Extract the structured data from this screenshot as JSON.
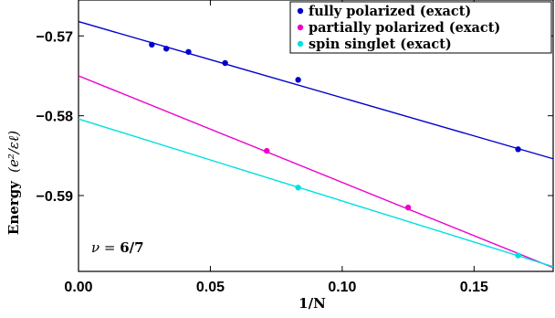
{
  "chart_data": {
    "type": "scatter",
    "xlabel": "1/N",
    "ylabel_main": "Energy",
    "ylabel_unit": "(e²/εℓ)",
    "xlim": [
      0,
      0.18
    ],
    "ylim": [
      -0.5995,
      -0.5655
    ],
    "x_ticks": [
      0,
      0.05,
      0.1,
      0.15
    ],
    "x_tick_labels": [
      "0.00",
      "0.05",
      "0.10",
      "0.15"
    ],
    "y_ticks": [
      -0.57,
      -0.58,
      -0.59
    ],
    "y_tick_labels": [
      "−0.57",
      "−0.58",
      "−0.59"
    ],
    "annotation_prefix": "ν = ",
    "annotation_value": "6/7",
    "legend_position": "top-right",
    "series": [
      {
        "name": "fully polarized (exact)",
        "color": "#0000cc",
        "points": [
          [
            0.0278,
            -0.5711
          ],
          [
            0.0333,
            -0.5716
          ],
          [
            0.0417,
            -0.572
          ],
          [
            0.0556,
            -0.5734
          ],
          [
            0.0833,
            -0.5755
          ],
          [
            0.1667,
            -0.5842
          ]
        ],
        "fit": {
          "intercept": -0.5682,
          "slope": -0.0955
        }
      },
      {
        "name": "partially polarized (exact)",
        "color": "#ee00cc",
        "points": [
          [
            0.0714,
            -0.5844
          ],
          [
            0.125,
            -0.5915
          ]
        ],
        "fit": {
          "intercept": -0.575,
          "slope": -0.1335
        }
      },
      {
        "name": "spin singlet (exact)",
        "color": "#00e0e0",
        "points": [
          [
            0.0833,
            -0.589
          ],
          [
            0.1667,
            -0.5975
          ]
        ],
        "fit": {
          "intercept": -0.5804,
          "slope": -0.1028
        }
      }
    ]
  }
}
